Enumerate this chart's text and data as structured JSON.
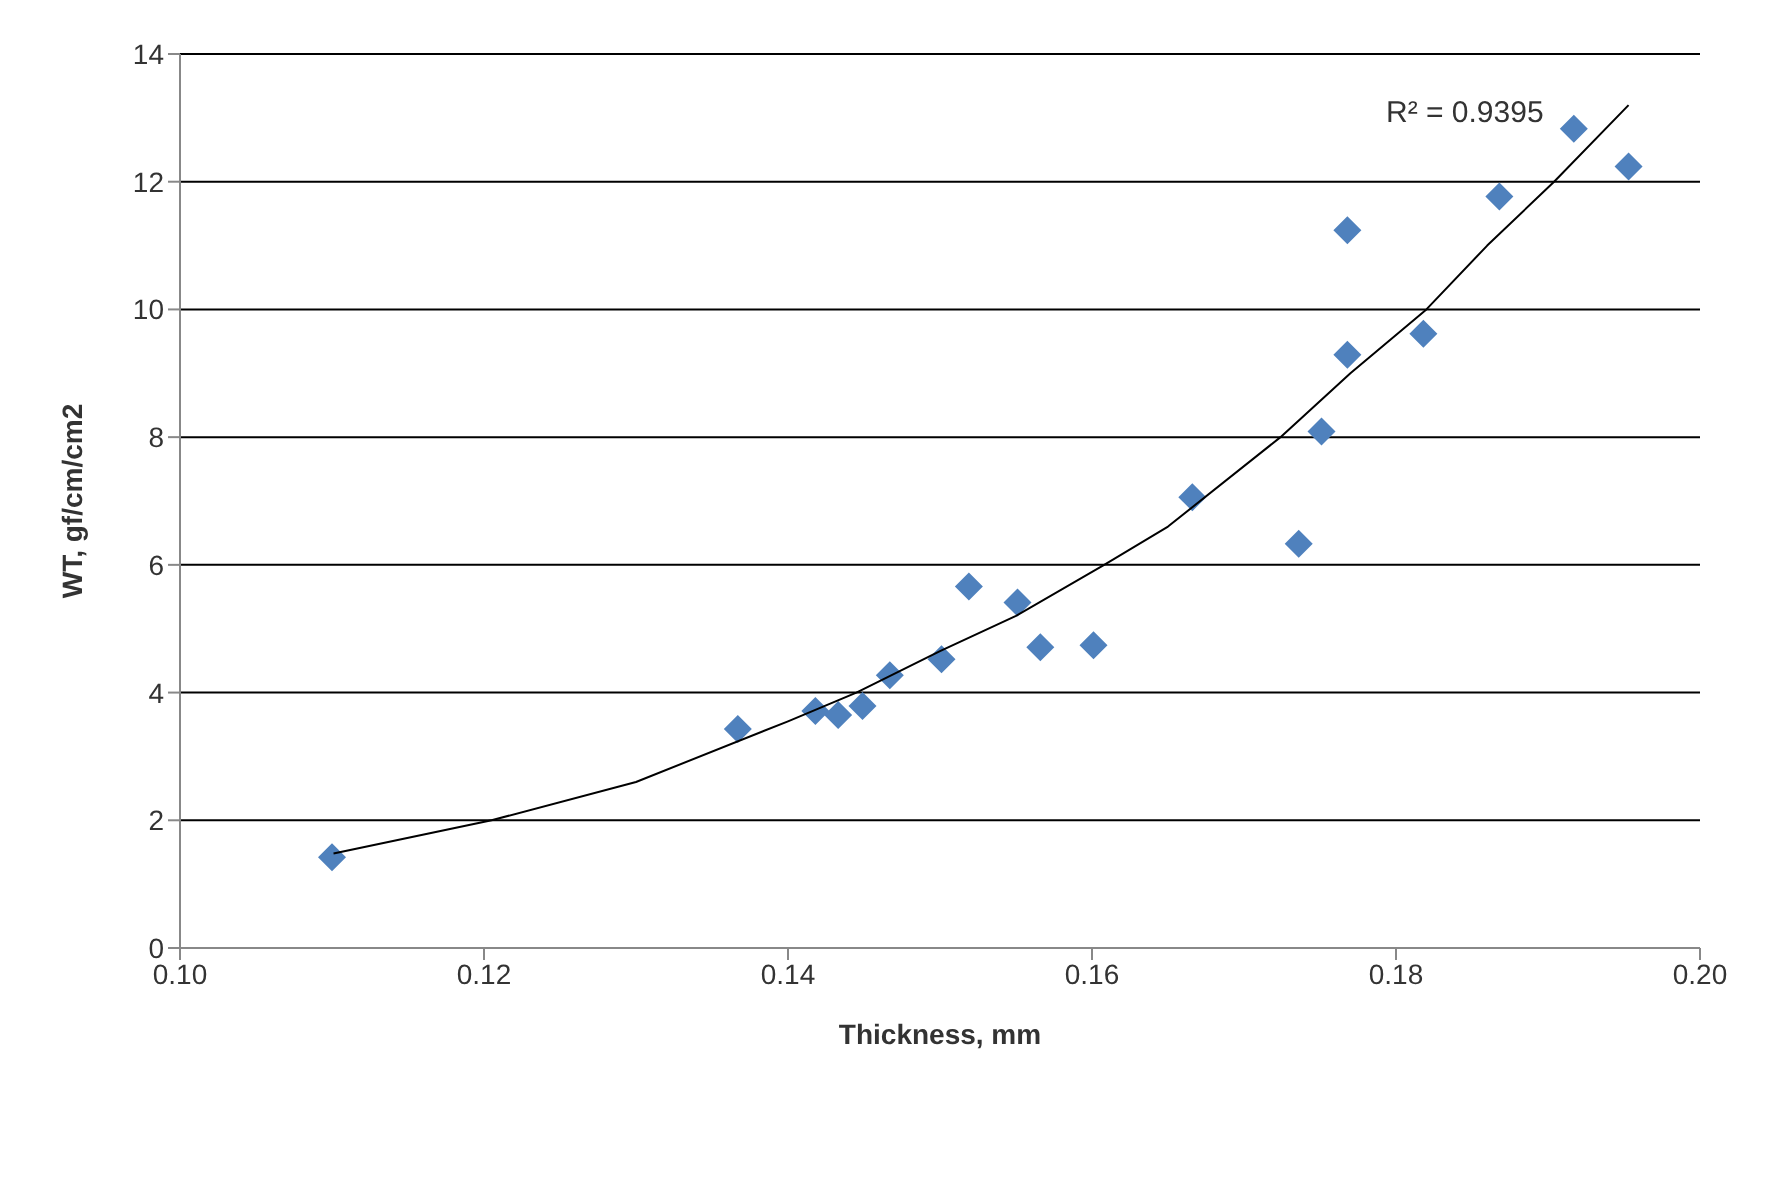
{
  "chart_data": {
    "type": "scatter",
    "xlabel": "Thickness,  mm",
    "ylabel": "WT, gf/cm/cm2",
    "marker": "diamond",
    "grid": "y",
    "xlim": [
      0.1,
      0.2
    ],
    "xticks": [
      {
        "value": 0.1,
        "label": "0.10"
      },
      {
        "value": 0.12,
        "label": "0.12"
      },
      {
        "value": 0.14,
        "label": "0.14"
      },
      {
        "value": 0.16,
        "label": "0.16"
      },
      {
        "value": 0.18,
        "label": "0.18"
      },
      {
        "value": 0.2,
        "label": "0.20"
      }
    ],
    "ylim": [
      0,
      14
    ],
    "yticks": [
      0,
      2,
      4,
      6,
      8,
      10,
      12,
      14
    ],
    "annotations": [
      "R² = 0.9395"
    ],
    "series": [
      {
        "color": "#4f81bd",
        "x": [
          0.11,
          0.1367,
          0.1418,
          0.1433,
          0.1449,
          0.1467,
          0.1501,
          0.1519,
          0.1551,
          0.1566,
          0.1601,
          0.1666,
          0.1736,
          0.1751,
          0.1768,
          0.1768,
          0.1818,
          0.1868,
          0.1917,
          0.1953
        ],
        "values": [
          1.42,
          3.43,
          3.71,
          3.65,
          3.79,
          4.27,
          4.52,
          5.66,
          5.41,
          4.71,
          4.74,
          7.06,
          6.33,
          8.09,
          9.29,
          11.24,
          9.62,
          11.77,
          12.83,
          12.24
        ]
      },
      {
        "type": "line",
        "color": "#000000",
        "marker": "none",
        "x": [
          0.1101,
          0.1205,
          0.13,
          0.14,
          0.1445,
          0.15,
          0.155,
          0.1608,
          0.165,
          0.1724,
          0.177,
          0.182,
          0.186,
          0.1904,
          0.1953
        ],
        "values": [
          1.48,
          2.0,
          2.6,
          3.55,
          4.0,
          4.65,
          5.2,
          6.0,
          6.6,
          8.0,
          9.0,
          10.0,
          11.0,
          12.0,
          13.2
        ]
      }
    ]
  }
}
